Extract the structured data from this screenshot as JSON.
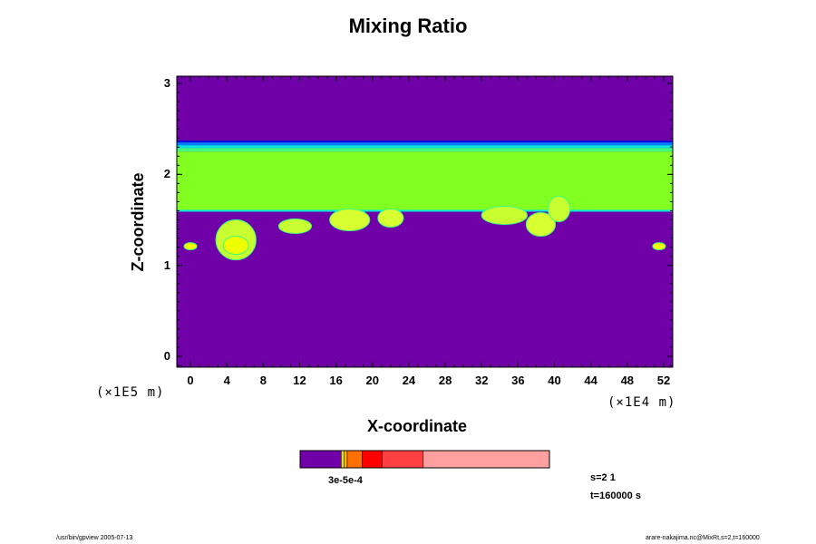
{
  "chart_data": {
    "type": "heatmap",
    "title": "Mixing Ratio",
    "xlabel": "X-coordinate",
    "ylabel": "Z-coordinate",
    "x_scale_note": "(×1E4 m)",
    "y_scale_note": "(×1E5 m)",
    "xlim": [
      -1.5,
      53
    ],
    "ylim": [
      -0.12,
      3.08
    ],
    "x_ticks": [
      0,
      4,
      8,
      12,
      16,
      20,
      24,
      28,
      32,
      36,
      40,
      44,
      48,
      52
    ],
    "y_ticks": [
      0,
      1,
      2,
      3
    ],
    "background_color": "#7000a8",
    "layer": {
      "top_z": 2.37,
      "base_z": 1.59,
      "band_colors": [
        "#0010e0",
        "#0080ff",
        "#00e8e0",
        "#40ff80",
        "#80ff20"
      ]
    },
    "cells": [
      {
        "x": 5.0,
        "z": 1.28,
        "rx": 2.2,
        "rz": 0.22,
        "color": "#c8ff30"
      },
      {
        "x": 5.0,
        "z": 1.22,
        "rx": 1.4,
        "rz": 0.1,
        "color": "#f0ff00"
      },
      {
        "x": 11.5,
        "z": 1.43,
        "rx": 1.8,
        "rz": 0.08,
        "color": "#c8ff30"
      },
      {
        "x": 17.5,
        "z": 1.5,
        "rx": 2.2,
        "rz": 0.12,
        "color": "#d8ff30"
      },
      {
        "x": 22.0,
        "z": 1.52,
        "rx": 1.4,
        "rz": 0.1,
        "color": "#d8ff30"
      },
      {
        "x": 34.5,
        "z": 1.55,
        "rx": 2.5,
        "rz": 0.1,
        "color": "#c8ff30"
      },
      {
        "x": 38.5,
        "z": 1.45,
        "rx": 1.6,
        "rz": 0.13,
        "color": "#d8ff30"
      },
      {
        "x": 40.5,
        "z": 1.62,
        "rx": 1.2,
        "rz": 0.14,
        "color": "#c8ff30"
      },
      {
        "x": 0.0,
        "z": 1.21,
        "rx": 0.7,
        "rz": 0.04,
        "color": "#f0ff00"
      },
      {
        "x": 51.5,
        "z": 1.21,
        "rx": 0.7,
        "rz": 0.04,
        "color": "#f0ff00"
      }
    ],
    "colorbar": {
      "colors": [
        "#7000a8",
        "#e0e020",
        "#ffb000",
        "#ff7000",
        "#ff0000",
        "#ff4040",
        "#ffa0a0"
      ],
      "fractions": [
        0.165,
        0.012,
        0.012,
        0.06,
        0.08,
        0.165,
        0.506
      ],
      "label": "3e-5e-4"
    },
    "legend_info": [
      "s=2 1",
      "t=160000 s"
    ]
  },
  "footer": {
    "left": "/usr/bin/gpview 2005-07-13",
    "right": "arare-nakajima.nc@MixRt,s=2,t=160000"
  }
}
